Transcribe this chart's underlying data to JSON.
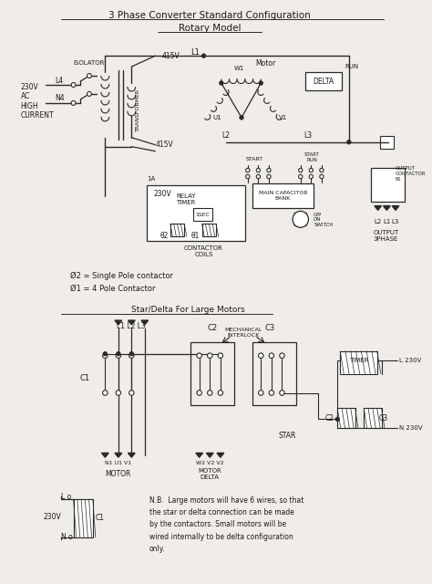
{
  "bg_color": "#f0ede8",
  "line_color": "#2a2a2a",
  "text_color": "#1a1a1a",
  "title1": "3 Phase Converter Standard Configuration",
  "title2": "Rotary Model",
  "legend1": "Ø2 = Single Pole contactor",
  "legend2": "Ø1 = 4 Pole Contactor",
  "section2_title": "Star/Delta For Large Motors",
  "nb_text": "N.B.  Large motors will have 6 wires, so that\nthe star or delta connection can be made\nby the contactors. Small motors will be\nwired internally to be delta configuration\nonly."
}
